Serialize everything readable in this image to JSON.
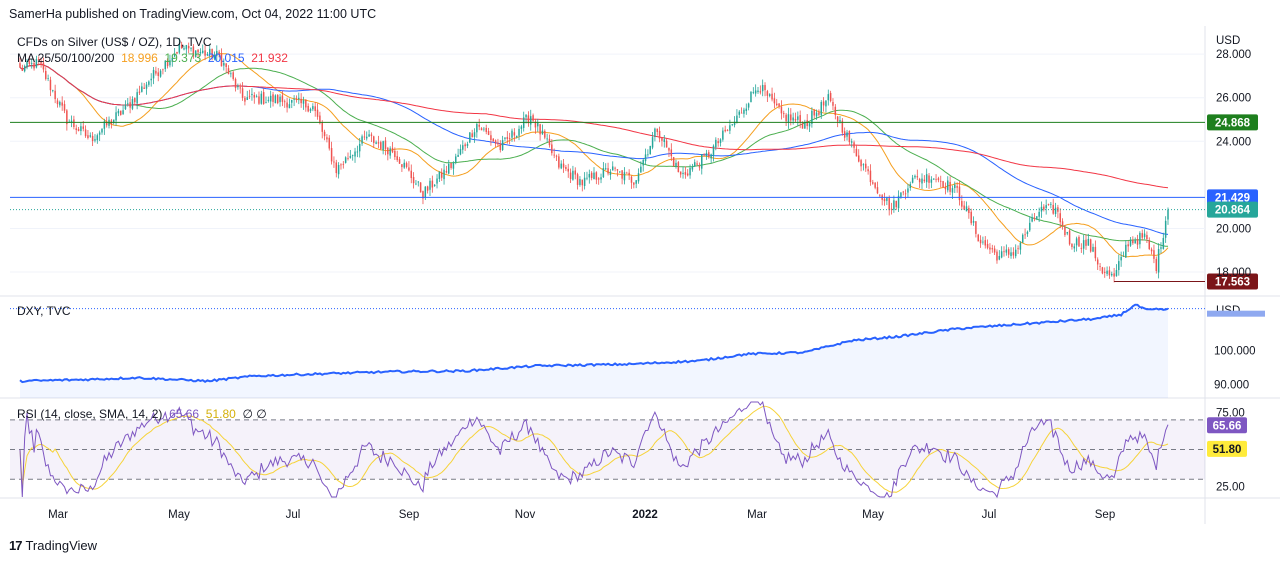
{
  "header": {
    "text": "SamerHa published on TradingView.com, Oct 04, 2022 11:00 UTC"
  },
  "legend_main": {
    "symbol": "CFDs on Silver (US$ / OZ), 1D, TVC",
    "ma_label": "MA 25/50/100/200",
    "ma_values": [
      "18.996",
      "19.373",
      "20.015",
      "21.932"
    ]
  },
  "legend_dxy": {
    "symbol": "DXY, TVC"
  },
  "legend_rsi": {
    "label": "RSI (14, close, SMA, 14, 2)",
    "rsi": "65.66",
    "sma": "51.80",
    "extra": "∅ ∅"
  },
  "footer": {
    "brand": "TradingView"
  },
  "colors": {
    "ma25": "#f59f1f",
    "ma50": "#4caf50",
    "ma100": "#2962ff",
    "ma200": "#f23645",
    "up": "#26a69a",
    "down": "#ef5350",
    "dxy": "#2962ff",
    "rsi": "#7e57c2",
    "rsi_sma": "#f6d33a",
    "level_green": "#1e7f1e",
    "level_blue": "#2962ff",
    "level_red": "#7b1519"
  },
  "chart_data": [
    {
      "type": "candlestick",
      "title": "CFDs on Silver (US$ / OZ), 1D, TVC",
      "currency": "USD",
      "ylim": [
        16.9,
        29.2
      ],
      "y_ticks": [
        "28.000",
        "26.000",
        "24.000",
        "20.000",
        "18.000"
      ],
      "x_labels": [
        "Mar",
        "May",
        "Jul",
        "Sep",
        "Nov",
        "2022",
        "Mar",
        "May",
        "Jul",
        "Sep"
      ],
      "anchors": [
        [
          0,
          27.3
        ],
        [
          8,
          27.6
        ],
        [
          20,
          25.0
        ],
        [
          30,
          24.1
        ],
        [
          45,
          25.5
        ],
        [
          55,
          26.8
        ],
        [
          68,
          28.3
        ],
        [
          85,
          27.9
        ],
        [
          95,
          26.0
        ],
        [
          110,
          25.9
        ],
        [
          125,
          25.6
        ],
        [
          135,
          22.7
        ],
        [
          148,
          24.2
        ],
        [
          160,
          23.5
        ],
        [
          172,
          21.6
        ],
        [
          185,
          23.0
        ],
        [
          195,
          24.8
        ],
        [
          205,
          23.7
        ],
        [
          218,
          25.2
        ],
        [
          230,
          22.9
        ],
        [
          240,
          22.1
        ],
        [
          252,
          22.7
        ],
        [
          262,
          22.2
        ],
        [
          272,
          24.6
        ],
        [
          282,
          22.4
        ],
        [
          293,
          23.3
        ],
        [
          305,
          24.9
        ],
        [
          315,
          26.6
        ],
        [
          325,
          25.2
        ],
        [
          335,
          24.8
        ],
        [
          345,
          25.9
        ],
        [
          355,
          23.8
        ],
        [
          365,
          22.0
        ],
        [
          372,
          20.9
        ],
        [
          380,
          22.2
        ],
        [
          390,
          22.4
        ],
        [
          400,
          21.7
        ],
        [
          410,
          19.4
        ],
        [
          418,
          18.7
        ],
        [
          425,
          19.0
        ],
        [
          435,
          20.8
        ],
        [
          442,
          20.9
        ],
        [
          448,
          19.4
        ],
        [
          456,
          19.3
        ],
        [
          462,
          18.1
        ],
        [
          467,
          17.7
        ],
        [
          473,
          19.4
        ],
        [
          480,
          19.6
        ],
        [
          485,
          18.3
        ],
        [
          490,
          20.86
        ]
      ],
      "levels": [
        {
          "value": 24.868,
          "label": "24.868",
          "color_key": "level_green"
        },
        {
          "value": 21.429,
          "label": "21.429",
          "color_key": "level_blue"
        },
        {
          "value": 20.864,
          "label": "20.864",
          "color_key": "up"
        },
        {
          "value": 17.563,
          "label": "17.563",
          "color_key": "level_red"
        }
      ],
      "moving_averages": [
        {
          "name": "MA25",
          "value": "18.996"
        },
        {
          "name": "MA50",
          "value": "19.373"
        },
        {
          "name": "MA100",
          "value": "20.015"
        },
        {
          "name": "MA200",
          "value": "21.932"
        }
      ]
    },
    {
      "type": "area",
      "title": "DXY, TVC",
      "currency": "USD",
      "ylim": [
        86,
        115
      ],
      "y_ticks": [
        "100.000",
        "90.000"
      ],
      "anchors": [
        [
          0,
          91.0
        ],
        [
          30,
          91.5
        ],
        [
          50,
          92.0
        ],
        [
          80,
          91.0
        ],
        [
          100,
          92.5
        ],
        [
          130,
          93.2
        ],
        [
          160,
          93.8
        ],
        [
          190,
          94.0
        ],
        [
          220,
          95.5
        ],
        [
          260,
          96.0
        ],
        [
          290,
          97.0
        ],
        [
          310,
          99.0
        ],
        [
          335,
          99.5
        ],
        [
          355,
          103.0
        ],
        [
          375,
          104.2
        ],
        [
          400,
          106.5
        ],
        [
          420,
          107.5
        ],
        [
          440,
          108.5
        ],
        [
          460,
          109.5
        ],
        [
          470,
          110.7
        ],
        [
          476,
          113.6
        ],
        [
          481,
          112.0
        ],
        [
          485,
          112.2
        ]
      ]
    },
    {
      "type": "line",
      "title": "RSI (14, close, SMA, 14, 2)",
      "ylim": [
        18,
        82
      ],
      "y_ticks": [
        "75.00",
        "25.00"
      ],
      "bands": [
        70,
        50,
        30
      ],
      "last_rsi": "65.66",
      "last_sma": "51.80"
    }
  ]
}
